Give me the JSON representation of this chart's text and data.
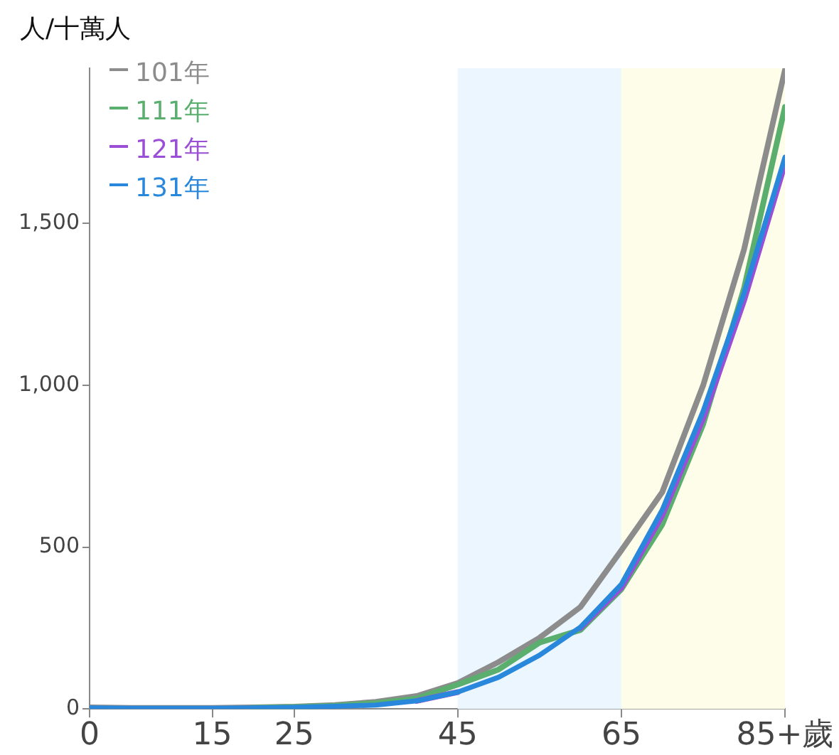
{
  "chart_data": {
    "type": "line",
    "ylabel": "人/十萬人",
    "x": [
      0,
      5,
      10,
      15,
      20,
      25,
      30,
      35,
      40,
      45,
      50,
      55,
      60,
      65,
      70,
      75,
      80,
      85
    ],
    "series": [
      {
        "name": "101年",
        "color": "#8c8c8c",
        "values": [
          5,
          3,
          3,
          3,
          5,
          7,
          12,
          22,
          40,
          80,
          145,
          220,
          315,
          490,
          670,
          1000,
          1420,
          1975
        ]
      },
      {
        "name": "111年",
        "color": "#5aae6e",
        "values": [
          null,
          null,
          null,
          null,
          4,
          6,
          10,
          18,
          32,
          75,
          122,
          205,
          244,
          370,
          570,
          880,
          1300,
          1860
        ]
      },
      {
        "name": "121年",
        "color": "#9b4fd6",
        "values": [
          null,
          null,
          null,
          null,
          null,
          null,
          null,
          null,
          25,
          52,
          null,
          null,
          250,
          375,
          598,
          898,
          1262,
          1685
        ]
      },
      {
        "name": "131年",
        "color": "#2a88dc",
        "values": [
          3,
          2,
          2,
          2,
          3,
          5,
          8,
          12,
          25,
          52,
          98,
          166,
          253,
          385,
          615,
          920,
          1285,
          1705
        ]
      }
    ],
    "xlim": [
      0,
      85
    ],
    "xticks": [
      0,
      15,
      25,
      45,
      65,
      {
        "value": 85,
        "label": "85+歲"
      }
    ],
    "ylim": [
      0,
      1980
    ],
    "yticks": [
      0,
      500,
      {
        "value": 1000,
        "label": "1,000"
      },
      {
        "value": 1500,
        "label": "1,500"
      }
    ],
    "bands": [
      {
        "axis": "x",
        "from": 45,
        "to": 65,
        "color": "#ebf6fe"
      },
      {
        "axis": "x",
        "from": 65,
        "to": 85,
        "color": "#fefde9"
      }
    ],
    "grid": false,
    "legend": "top left",
    "marker": "none",
    "line_style": "solid"
  }
}
